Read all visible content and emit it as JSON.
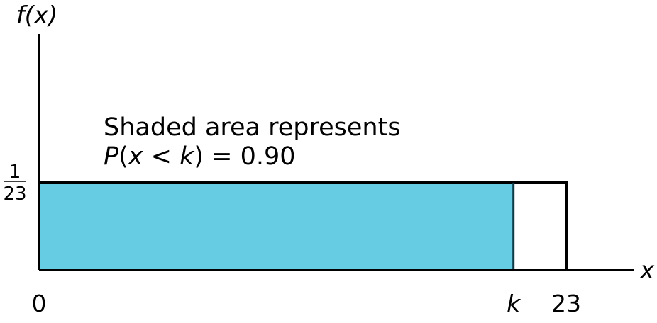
{
  "chart_data": {
    "type": "area",
    "distribution": "uniform",
    "x_label": "x",
    "y_label": "f(x)",
    "x_range": [
      0,
      23
    ],
    "density": {
      "numerator": "1",
      "denominator": "23"
    },
    "x_ticks": [
      {
        "value": 0,
        "label": "0"
      },
      {
        "value": 20.7,
        "label": "k"
      },
      {
        "value": 23,
        "label": "23"
      }
    ],
    "shaded": {
      "from": 0,
      "to": 20.7,
      "color": "#66CCE3"
    },
    "annotation": {
      "line1": "Shaded area represents",
      "line2_prefix": "P",
      "line2_paren_open": "(",
      "line2_var": "x",
      "line2_op": " < ",
      "line2_bound": "k",
      "line2_paren_close": ")",
      "line2_suffix": " = 0.90"
    },
    "legend": "none",
    "grid": false
  }
}
